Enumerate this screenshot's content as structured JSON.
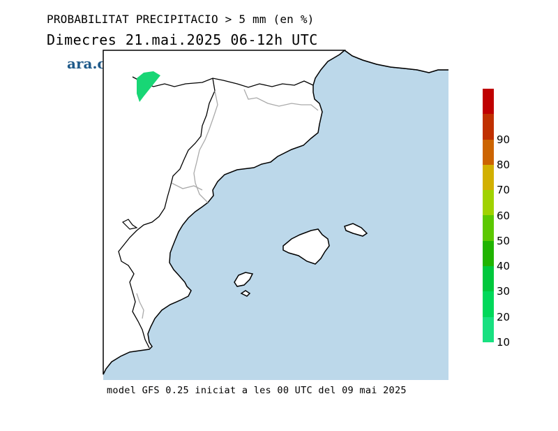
{
  "header": {
    "title": "PROBABILITAT PRECIPITACIO > 5 mm (en %)",
    "subtitle": "Dimecres  21.mai.2025 06-12h UTC"
  },
  "brand": {
    "logo_text": "ara.cat",
    "color": "#1f5a8a"
  },
  "footer": {
    "text": "model GFS 0.25 iniciat a les 00 UTC del 09 mai 2025"
  },
  "map": {
    "sea_color": "#bcd8ea",
    "land_color": "#ffffff",
    "coast_color": "#000000",
    "border_color": "#aaaaaa",
    "precip_area_color": "#18d675"
  },
  "legend": {
    "bins": [
      {
        "label": "",
        "color": "#bf0000"
      },
      {
        "label": "90",
        "color": "#c03000"
      },
      {
        "label": "80",
        "color": "#cc6400"
      },
      {
        "label": "70",
        "color": "#d2b000"
      },
      {
        "label": "60",
        "color": "#a0d200"
      },
      {
        "label": "50",
        "color": "#5cc800"
      },
      {
        "label": "40",
        "color": "#20b400"
      },
      {
        "label": "30",
        "color": "#00c83c"
      },
      {
        "label": "20",
        "color": "#00d85a"
      },
      {
        "label": "10",
        "color": "#18e080"
      }
    ]
  }
}
